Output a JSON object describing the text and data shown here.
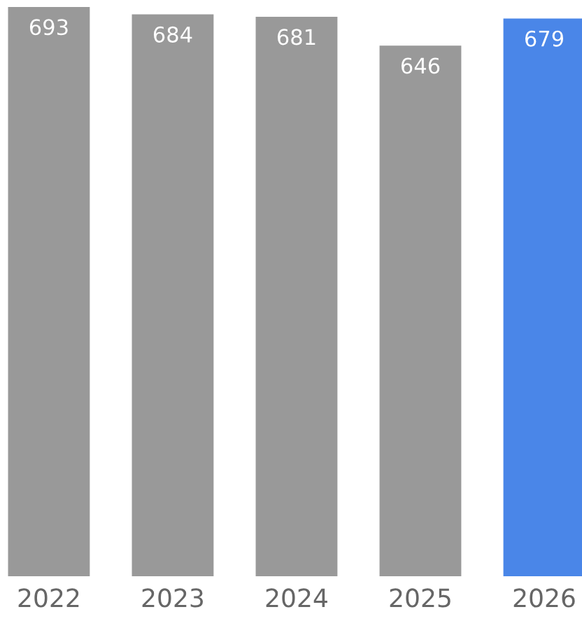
{
  "chart_data": {
    "type": "bar",
    "categories": [
      "2022",
      "2023",
      "2024",
      "2025",
      "2026"
    ],
    "values": [
      693,
      684,
      681,
      646,
      679
    ],
    "colors": [
      "#999999",
      "#999999",
      "#999999",
      "#999999",
      "#4a86e8"
    ],
    "data_labels": true,
    "grid": false,
    "legend": false,
    "tick_labels": "x"
  }
}
